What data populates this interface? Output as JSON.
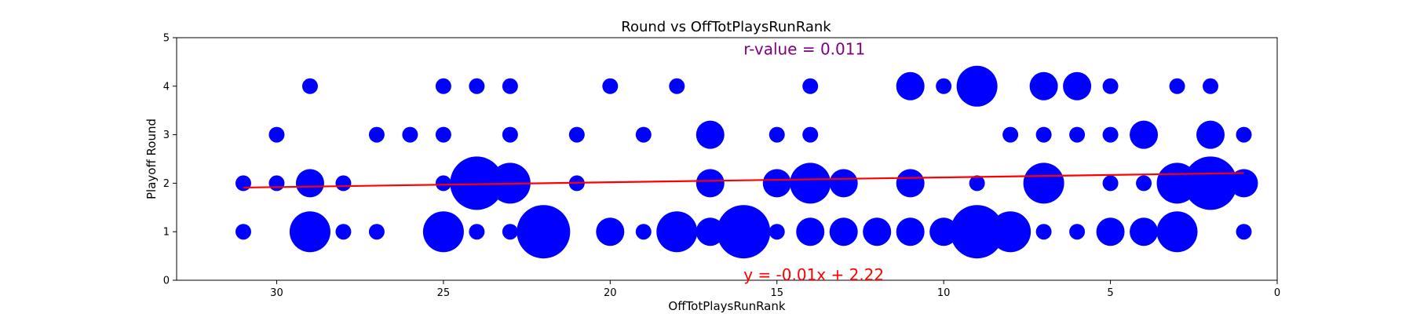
{
  "chart_data": {
    "type": "scatter",
    "title": "Round vs OffTotPlaysRunRank",
    "xlabel": "OffTotPlaysRunRank",
    "ylabel": "Playoff Round",
    "xlim": [
      33,
      0
    ],
    "ylim": [
      0,
      5
    ],
    "x_ticks": [
      30,
      25,
      20,
      15,
      10,
      5,
      0
    ],
    "y_ticks": [
      0,
      1,
      2,
      3,
      4,
      5
    ],
    "grid": false,
    "marker_color": "#0000ff",
    "size_unit": "count",
    "points": [
      {
        "x": 29,
        "y": 4,
        "size": 1
      },
      {
        "x": 25,
        "y": 4,
        "size": 1
      },
      {
        "x": 24,
        "y": 4,
        "size": 1
      },
      {
        "x": 23,
        "y": 4,
        "size": 1
      },
      {
        "x": 20,
        "y": 4,
        "size": 1
      },
      {
        "x": 18,
        "y": 4,
        "size": 1
      },
      {
        "x": 14,
        "y": 4,
        "size": 1
      },
      {
        "x": 11,
        "y": 4,
        "size": 2
      },
      {
        "x": 10,
        "y": 4,
        "size": 1
      },
      {
        "x": 9,
        "y": 4,
        "size": 3
      },
      {
        "x": 7,
        "y": 4,
        "size": 2
      },
      {
        "x": 6,
        "y": 4,
        "size": 2
      },
      {
        "x": 5,
        "y": 4,
        "size": 1
      },
      {
        "x": 3,
        "y": 4,
        "size": 1
      },
      {
        "x": 2,
        "y": 4,
        "size": 1
      },
      {
        "x": 30,
        "y": 3,
        "size": 1
      },
      {
        "x": 27,
        "y": 3,
        "size": 1
      },
      {
        "x": 26,
        "y": 3,
        "size": 1
      },
      {
        "x": 25,
        "y": 3,
        "size": 1
      },
      {
        "x": 23,
        "y": 3,
        "size": 1
      },
      {
        "x": 21,
        "y": 3,
        "size": 1
      },
      {
        "x": 19,
        "y": 3,
        "size": 1
      },
      {
        "x": 17,
        "y": 3,
        "size": 2
      },
      {
        "x": 15,
        "y": 3,
        "size": 1
      },
      {
        "x": 14,
        "y": 3,
        "size": 1
      },
      {
        "x": 8,
        "y": 3,
        "size": 1
      },
      {
        "x": 7,
        "y": 3,
        "size": 1
      },
      {
        "x": 6,
        "y": 3,
        "size": 1
      },
      {
        "x": 5,
        "y": 3,
        "size": 1
      },
      {
        "x": 4,
        "y": 3,
        "size": 2
      },
      {
        "x": 2,
        "y": 3,
        "size": 2
      },
      {
        "x": 1,
        "y": 3,
        "size": 1
      },
      {
        "x": 31,
        "y": 2,
        "size": 1
      },
      {
        "x": 30,
        "y": 2,
        "size": 1
      },
      {
        "x": 29,
        "y": 2,
        "size": 2
      },
      {
        "x": 28,
        "y": 2,
        "size": 1
      },
      {
        "x": 25,
        "y": 2,
        "size": 1
      },
      {
        "x": 24,
        "y": 2,
        "size": 4
      },
      {
        "x": 23,
        "y": 2,
        "size": 3
      },
      {
        "x": 21,
        "y": 2,
        "size": 1
      },
      {
        "x": 17,
        "y": 2,
        "size": 2
      },
      {
        "x": 15,
        "y": 2,
        "size": 2
      },
      {
        "x": 14,
        "y": 2,
        "size": 3
      },
      {
        "x": 13,
        "y": 2,
        "size": 2
      },
      {
        "x": 11,
        "y": 2,
        "size": 2
      },
      {
        "x": 9,
        "y": 2,
        "size": 1
      },
      {
        "x": 7,
        "y": 2,
        "size": 3
      },
      {
        "x": 5,
        "y": 2,
        "size": 1
      },
      {
        "x": 4,
        "y": 2,
        "size": 1
      },
      {
        "x": 3,
        "y": 2,
        "size": 3
      },
      {
        "x": 2,
        "y": 2,
        "size": 4
      },
      {
        "x": 1,
        "y": 2,
        "size": 2
      },
      {
        "x": 31,
        "y": 1,
        "size": 1
      },
      {
        "x": 29,
        "y": 1,
        "size": 3
      },
      {
        "x": 28,
        "y": 1,
        "size": 1
      },
      {
        "x": 27,
        "y": 1,
        "size": 1
      },
      {
        "x": 25,
        "y": 1,
        "size": 3
      },
      {
        "x": 24,
        "y": 1,
        "size": 1
      },
      {
        "x": 23,
        "y": 1,
        "size": 1
      },
      {
        "x": 22,
        "y": 1,
        "size": 4
      },
      {
        "x": 20,
        "y": 1,
        "size": 2
      },
      {
        "x": 19,
        "y": 1,
        "size": 1
      },
      {
        "x": 18,
        "y": 1,
        "size": 3
      },
      {
        "x": 17,
        "y": 1,
        "size": 2
      },
      {
        "x": 16,
        "y": 1,
        "size": 4
      },
      {
        "x": 15,
        "y": 1,
        "size": 1
      },
      {
        "x": 14,
        "y": 1,
        "size": 2
      },
      {
        "x": 13,
        "y": 1,
        "size": 2
      },
      {
        "x": 12,
        "y": 1,
        "size": 2
      },
      {
        "x": 11,
        "y": 1,
        "size": 2
      },
      {
        "x": 10,
        "y": 1,
        "size": 2
      },
      {
        "x": 9,
        "y": 1,
        "size": 4
      },
      {
        "x": 8,
        "y": 1,
        "size": 3
      },
      {
        "x": 7,
        "y": 1,
        "size": 1
      },
      {
        "x": 6,
        "y": 1,
        "size": 1
      },
      {
        "x": 5,
        "y": 1,
        "size": 2
      },
      {
        "x": 4,
        "y": 1,
        "size": 2
      },
      {
        "x": 3,
        "y": 1,
        "size": 3
      },
      {
        "x": 1,
        "y": 1,
        "size": 1
      }
    ],
    "regression": {
      "slope": -0.01,
      "intercept": 2.22,
      "x_range": [
        31,
        1
      ],
      "color": "#ff0000",
      "equation_label": "y = -0.01x + 2.22",
      "equation_anchor": [
        16,
        0.1
      ]
    },
    "r_value": {
      "label": "r-value = 0.011",
      "color": "#800080",
      "anchor": [
        16,
        4.8
      ]
    }
  }
}
